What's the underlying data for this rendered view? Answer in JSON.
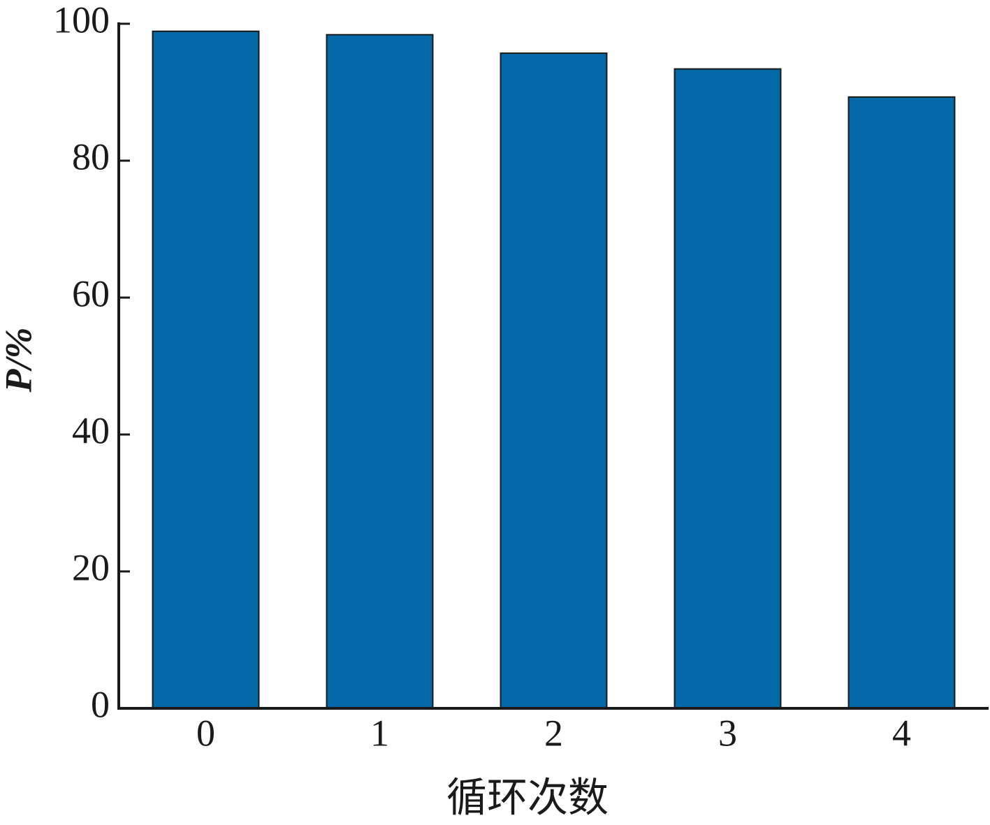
{
  "chart_data": {
    "type": "bar",
    "xlabel": "循环次数",
    "ylabel": "P/%",
    "categories": [
      "0",
      "1",
      "2",
      "3",
      "4"
    ],
    "values": [
      98.9,
      98.4,
      95.7,
      93.4,
      89.3
    ],
    "color": "#036aa7",
    "ylim": [
      0,
      100
    ],
    "yticks": [
      0,
      20,
      40,
      60,
      80,
      100
    ],
    "grid": false
  }
}
